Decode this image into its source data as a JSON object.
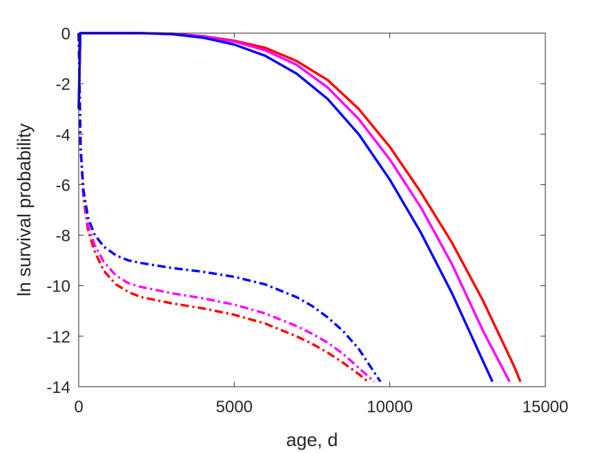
{
  "chart_data": {
    "type": "line",
    "title": "",
    "xlabel": "age, d",
    "ylabel": "ln survival probability",
    "xlim": [
      0,
      15000
    ],
    "ylim": [
      -14,
      0
    ],
    "xticks": [
      0,
      5000,
      10000,
      15000
    ],
    "yticks": [
      0,
      -2,
      -4,
      -6,
      -8,
      -10,
      -12,
      -14
    ],
    "xtick_labels": [
      "0",
      "5000",
      "10000",
      "15000"
    ],
    "ytick_labels": [
      "0",
      "-2",
      "-4",
      "-6",
      "-8",
      "-10",
      "-12",
      "-14"
    ],
    "grid": false,
    "legend": "none",
    "series": [
      {
        "color": "#ff0000",
        "style": "solid",
        "x": [
          0,
          50,
          1000,
          2000,
          3000,
          4000,
          5000,
          6000,
          7000,
          8000,
          9000,
          10000,
          11000,
          12000,
          13000,
          14000,
          14200
        ],
        "y": [
          -3.0,
          0,
          0,
          0,
          -0.02,
          -0.12,
          -0.3,
          -0.58,
          -1.1,
          -1.85,
          -3.0,
          -4.5,
          -6.3,
          -8.3,
          -10.6,
          -13.2,
          -13.8
        ]
      },
      {
        "color": "#ff00ff",
        "style": "solid",
        "x": [
          0,
          50,
          1000,
          2000,
          3000,
          4000,
          5000,
          6000,
          7000,
          8000,
          9000,
          10000,
          11000,
          12000,
          13000,
          13850
        ],
        "y": [
          -3.0,
          0,
          0,
          0,
          -0.03,
          -0.13,
          -0.33,
          -0.68,
          -1.25,
          -2.15,
          -3.4,
          -5.0,
          -6.9,
          -9.15,
          -11.8,
          -13.8
        ]
      },
      {
        "color": "#0000ff",
        "style": "solid",
        "x": [
          0,
          50,
          1000,
          2000,
          3000,
          4000,
          5000,
          6000,
          7000,
          8000,
          9000,
          10000,
          11000,
          12000,
          13000,
          13300
        ],
        "y": [
          -3.0,
          0,
          0,
          0,
          -0.04,
          -0.18,
          -0.45,
          -0.9,
          -1.6,
          -2.6,
          -4.0,
          -5.8,
          -7.9,
          -10.3,
          -13.0,
          -13.8
        ]
      },
      {
        "color": "#ff0000",
        "style": "dashdot",
        "x": [
          0,
          60,
          150,
          300,
          500,
          800,
          1200,
          1600,
          2000,
          3000,
          4000,
          5000,
          6000,
          7000,
          7500,
          8000,
          8500,
          9000,
          9300
        ],
        "y": [
          0,
          -4.5,
          -6.5,
          -7.8,
          -8.6,
          -9.4,
          -9.95,
          -10.25,
          -10.45,
          -10.7,
          -10.9,
          -11.15,
          -11.5,
          -12.0,
          -12.3,
          -12.65,
          -13.05,
          -13.5,
          -13.8
        ]
      },
      {
        "color": "#ff00ff",
        "style": "dashdot",
        "x": [
          0,
          60,
          150,
          300,
          500,
          800,
          1200,
          1600,
          2000,
          3000,
          4000,
          5000,
          6000,
          7000,
          7500,
          8000,
          8500,
          9000,
          9500
        ],
        "y": [
          0,
          -4.5,
          -6.4,
          -7.6,
          -8.35,
          -9.05,
          -9.6,
          -9.9,
          -10.05,
          -10.3,
          -10.5,
          -10.75,
          -11.1,
          -11.6,
          -11.9,
          -12.25,
          -12.7,
          -13.25,
          -13.8
        ]
      },
      {
        "color": "#0000ff",
        "style": "dashdot",
        "x": [
          0,
          60,
          150,
          300,
          500,
          800,
          1200,
          1600,
          2000,
          3000,
          4000,
          5000,
          6000,
          7000,
          7500,
          8000,
          8500,
          9000,
          9700
        ],
        "y": [
          0,
          -4.5,
          -6.2,
          -7.3,
          -7.95,
          -8.45,
          -8.8,
          -9.0,
          -9.1,
          -9.3,
          -9.45,
          -9.65,
          -9.95,
          -10.45,
          -10.8,
          -11.25,
          -11.8,
          -12.5,
          -13.8
        ]
      }
    ]
  }
}
